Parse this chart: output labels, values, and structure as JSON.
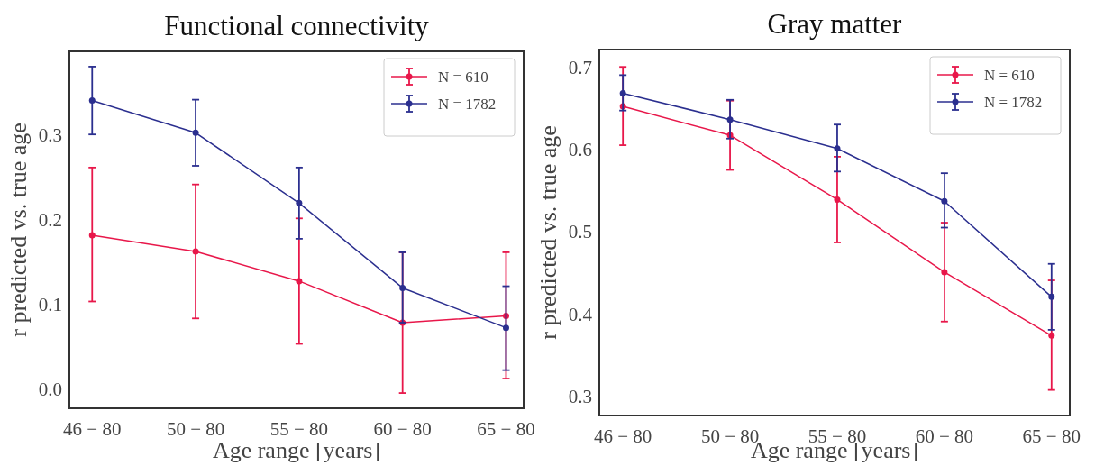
{
  "chart_data": [
    {
      "type": "line",
      "title": "Functional connectivity",
      "xlabel": "Age range [years]",
      "ylabel": "r predicted vs. true age",
      "categories": [
        "46 − 80",
        "50 − 80",
        "55 − 80",
        "60 − 80",
        "65 − 80"
      ],
      "ylim": [
        -0.023,
        0.398
      ],
      "yticks": [
        {
          "value": 0,
          "label": "0.0"
        },
        0.1,
        0.2,
        0.3
      ],
      "grid": false,
      "legend": "top right",
      "marker": "circle",
      "line_style": "solid",
      "series": [
        {
          "name": "N = 610",
          "color": "#e8174a",
          "values": [
            0.181,
            0.162,
            0.127,
            0.078,
            0.086
          ],
          "errors": [
            [
              0.103,
              0.261
            ],
            [
              0.083,
              0.241
            ],
            [
              0.053,
              0.201
            ],
            [
              -0.005,
              0.161
            ],
            [
              0.012,
              0.161
            ]
          ]
        },
        {
          "name": "N = 1782",
          "color": "#2b2f8f",
          "values": [
            0.34,
            0.302,
            0.219,
            0.119,
            0.072
          ],
          "errors": [
            [
              0.3,
              0.38
            ],
            [
              0.263,
              0.341
            ],
            [
              0.177,
              0.261
            ],
            [
              0.078,
              0.161
            ],
            [
              0.022,
              0.121
            ]
          ]
        }
      ]
    },
    {
      "type": "line",
      "title": "Gray matter",
      "xlabel": "Age range [years]",
      "ylabel": "r predicted vs. true age",
      "categories": [
        "46 − 80",
        "50 − 80",
        "55 − 80",
        "60 − 80",
        "65 − 80"
      ],
      "ylim": [
        0.277,
        0.721
      ],
      "yticks": [
        0.3,
        0.4,
        0.5,
        0.6,
        0.7
      ],
      "grid": false,
      "legend": "top right",
      "marker": "circle",
      "line_style": "solid",
      "series": [
        {
          "name": "N = 610",
          "color": "#e8174a",
          "values": [
            0.652,
            0.617,
            0.539,
            0.451,
            0.374
          ],
          "errors": [
            [
              0.605,
              0.7
            ],
            [
              0.575,
              0.659
            ],
            [
              0.487,
              0.591
            ],
            [
              0.391,
              0.511
            ],
            [
              0.308,
              0.441
            ]
          ]
        },
        {
          "name": "N = 1782",
          "color": "#2b2f8f",
          "values": [
            0.668,
            0.636,
            0.601,
            0.537,
            0.421
          ],
          "errors": [
            [
              0.647,
              0.69
            ],
            [
              0.613,
              0.66
            ],
            [
              0.573,
              0.63
            ],
            [
              0.505,
              0.571
            ],
            [
              0.381,
              0.461
            ]
          ]
        }
      ]
    }
  ]
}
